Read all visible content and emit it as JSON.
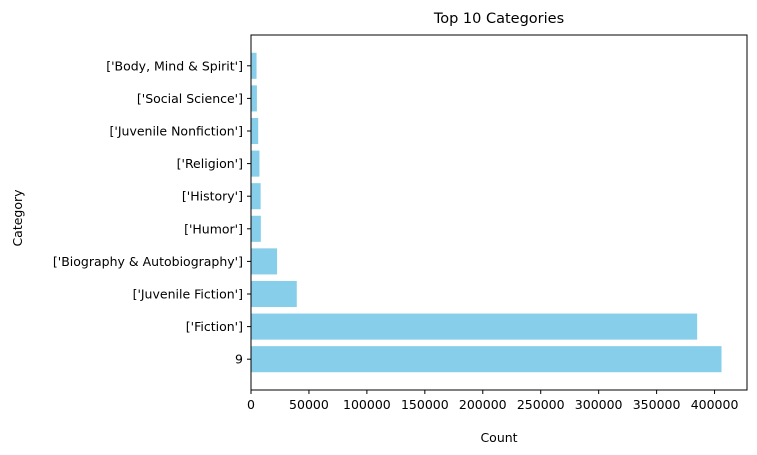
{
  "chart_data": {
    "type": "bar",
    "orientation": "horizontal",
    "title": "Top 10 Categories",
    "xlabel": "Count",
    "ylabel": "Category",
    "xlim": [
      0,
      428000
    ],
    "xticks": [
      0,
      50000,
      100000,
      150000,
      200000,
      250000,
      300000,
      350000,
      400000
    ],
    "grid": false,
    "bar_color": "#87ceeb",
    "categories": [
      "9",
      "['Fiction']",
      "['Juvenile Fiction']",
      "['Biography & Autobiography']",
      "['Humor']",
      "['History']",
      "['Religion']",
      "['Juvenile Nonfiction']",
      "['Social Science']",
      "['Body, Mind & Spirit']"
    ],
    "values": [
      406000,
      385000,
      39500,
      22500,
      8500,
      8300,
      7300,
      6200,
      5100,
      4800
    ]
  }
}
